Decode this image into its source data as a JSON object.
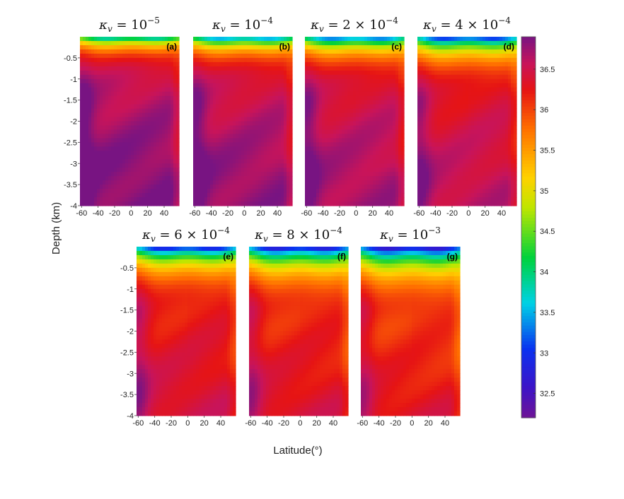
{
  "chart_data": {
    "type": "heatmap",
    "ylabel": "Depth (km)",
    "xlabel": "Latitude(°)",
    "xlim": [
      -62,
      58
    ],
    "ylim": [
      -4,
      0
    ],
    "x_ticks": [
      -60,
      -40,
      -20,
      0,
      20,
      40
    ],
    "x_tick_labels": [
      "-60",
      "-40",
      "-20",
      "0",
      "20",
      "40"
    ],
    "y_ticks": [
      -0.5,
      -1,
      -1.5,
      -2,
      -2.5,
      -3,
      -3.5,
      -4
    ],
    "y_tick_labels": [
      "-0.5",
      "-1",
      "-1.5",
      "-2",
      "-2.5",
      "-3",
      "-3.5",
      "-4"
    ],
    "colorbar": {
      "min": 32.2,
      "max": 36.9,
      "ticks": [
        32.5,
        33,
        33.5,
        34,
        34.5,
        35,
        35.5,
        36,
        36.5
      ],
      "tick_labels": [
        "32.5",
        "33",
        "33.5",
        "34",
        "34.5",
        "35",
        "35.5",
        "36",
        "36.5"
      ],
      "colormap": "jet-reversed-to-purple"
    },
    "panels": [
      {
        "label": "(a)",
        "title_prefix": "κ",
        "title_sub": "v",
        "title_body": " = 10",
        "title_exp": "−5",
        "surface_min": 33.3,
        "thermocline_km": 0.65,
        "deep_value": 36.55,
        "abyss_value": 36.85,
        "warm_deep_bias": 0.0
      },
      {
        "label": "(b)",
        "title_prefix": "κ",
        "title_sub": "v",
        "title_body": " = 10",
        "title_exp": "−4",
        "surface_min": 33.0,
        "thermocline_km": 0.75,
        "deep_value": 36.45,
        "abyss_value": 36.78,
        "warm_deep_bias": 0.05
      },
      {
        "label": "(c)",
        "title_prefix": "κ",
        "title_sub": "v",
        "title_body": " = 2 × 10",
        "title_exp": "−4",
        "surface_min": 32.9,
        "thermocline_km": 0.85,
        "deep_value": 36.4,
        "abyss_value": 36.7,
        "warm_deep_bias": 0.1
      },
      {
        "label": "(d)",
        "title_prefix": "κ",
        "title_sub": "v",
        "title_body": " = 4 × 10",
        "title_exp": "−4",
        "surface_min": 32.7,
        "thermocline_km": 1.0,
        "deep_value": 36.3,
        "abyss_value": 36.6,
        "warm_deep_bias": 0.15
      },
      {
        "label": "(e)",
        "title_prefix": "κ",
        "title_sub": "v",
        "title_body": " = 6 × 10",
        "title_exp": "−4",
        "surface_min": 32.6,
        "thermocline_km": 1.15,
        "deep_value": 36.15,
        "abyss_value": 36.45,
        "warm_deep_bias": 0.2
      },
      {
        "label": "(f)",
        "title_prefix": "κ",
        "title_sub": "v",
        "title_body": " = 8 × 10",
        "title_exp": "−4",
        "surface_min": 32.5,
        "thermocline_km": 1.3,
        "deep_value": 36.05,
        "abyss_value": 36.4,
        "warm_deep_bias": 0.25
      },
      {
        "label": "(g)",
        "title_prefix": "κ",
        "title_sub": "v",
        "title_body": " = 10",
        "title_exp": "−3",
        "surface_min": 32.4,
        "thermocline_km": 1.4,
        "deep_value": 35.95,
        "abyss_value": 36.35,
        "warm_deep_bias": 0.3
      }
    ]
  }
}
